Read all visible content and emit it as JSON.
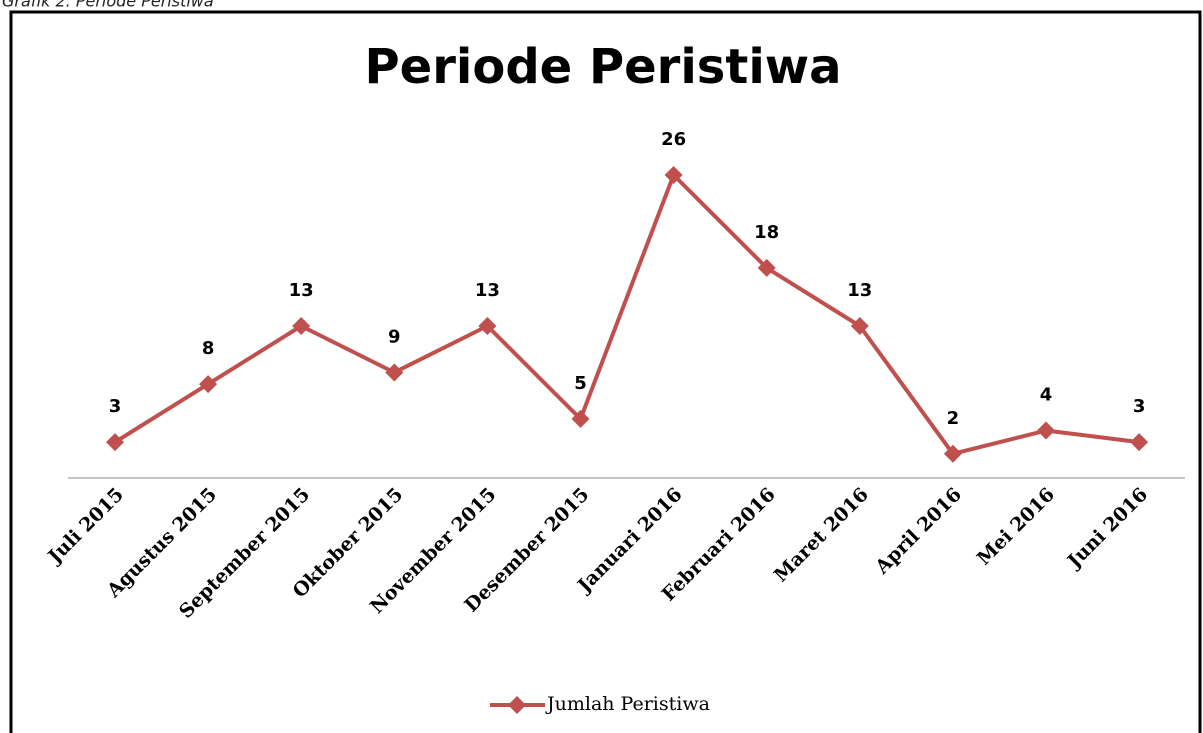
{
  "caption": "Grafik 2. Periode Peristiwa",
  "chart_data": {
    "type": "line",
    "title": "Periode Peristiwa",
    "categories": [
      "Juli 2015",
      "Agustus 2015",
      "September 2015",
      "Oktober 2015",
      "November 2015",
      "Desember 2015",
      "Januari 2016",
      "Februari 2016",
      "Maret 2016",
      "April 2016",
      "Mei 2016",
      "Juni 2016"
    ],
    "series": [
      {
        "name": "Jumlah Peristiwa",
        "color": "#c0504d",
        "values": [
          3,
          8,
          13,
          9,
          13,
          5,
          26,
          18,
          13,
          2,
          4,
          3
        ]
      }
    ],
    "legend": "bottom"
  }
}
